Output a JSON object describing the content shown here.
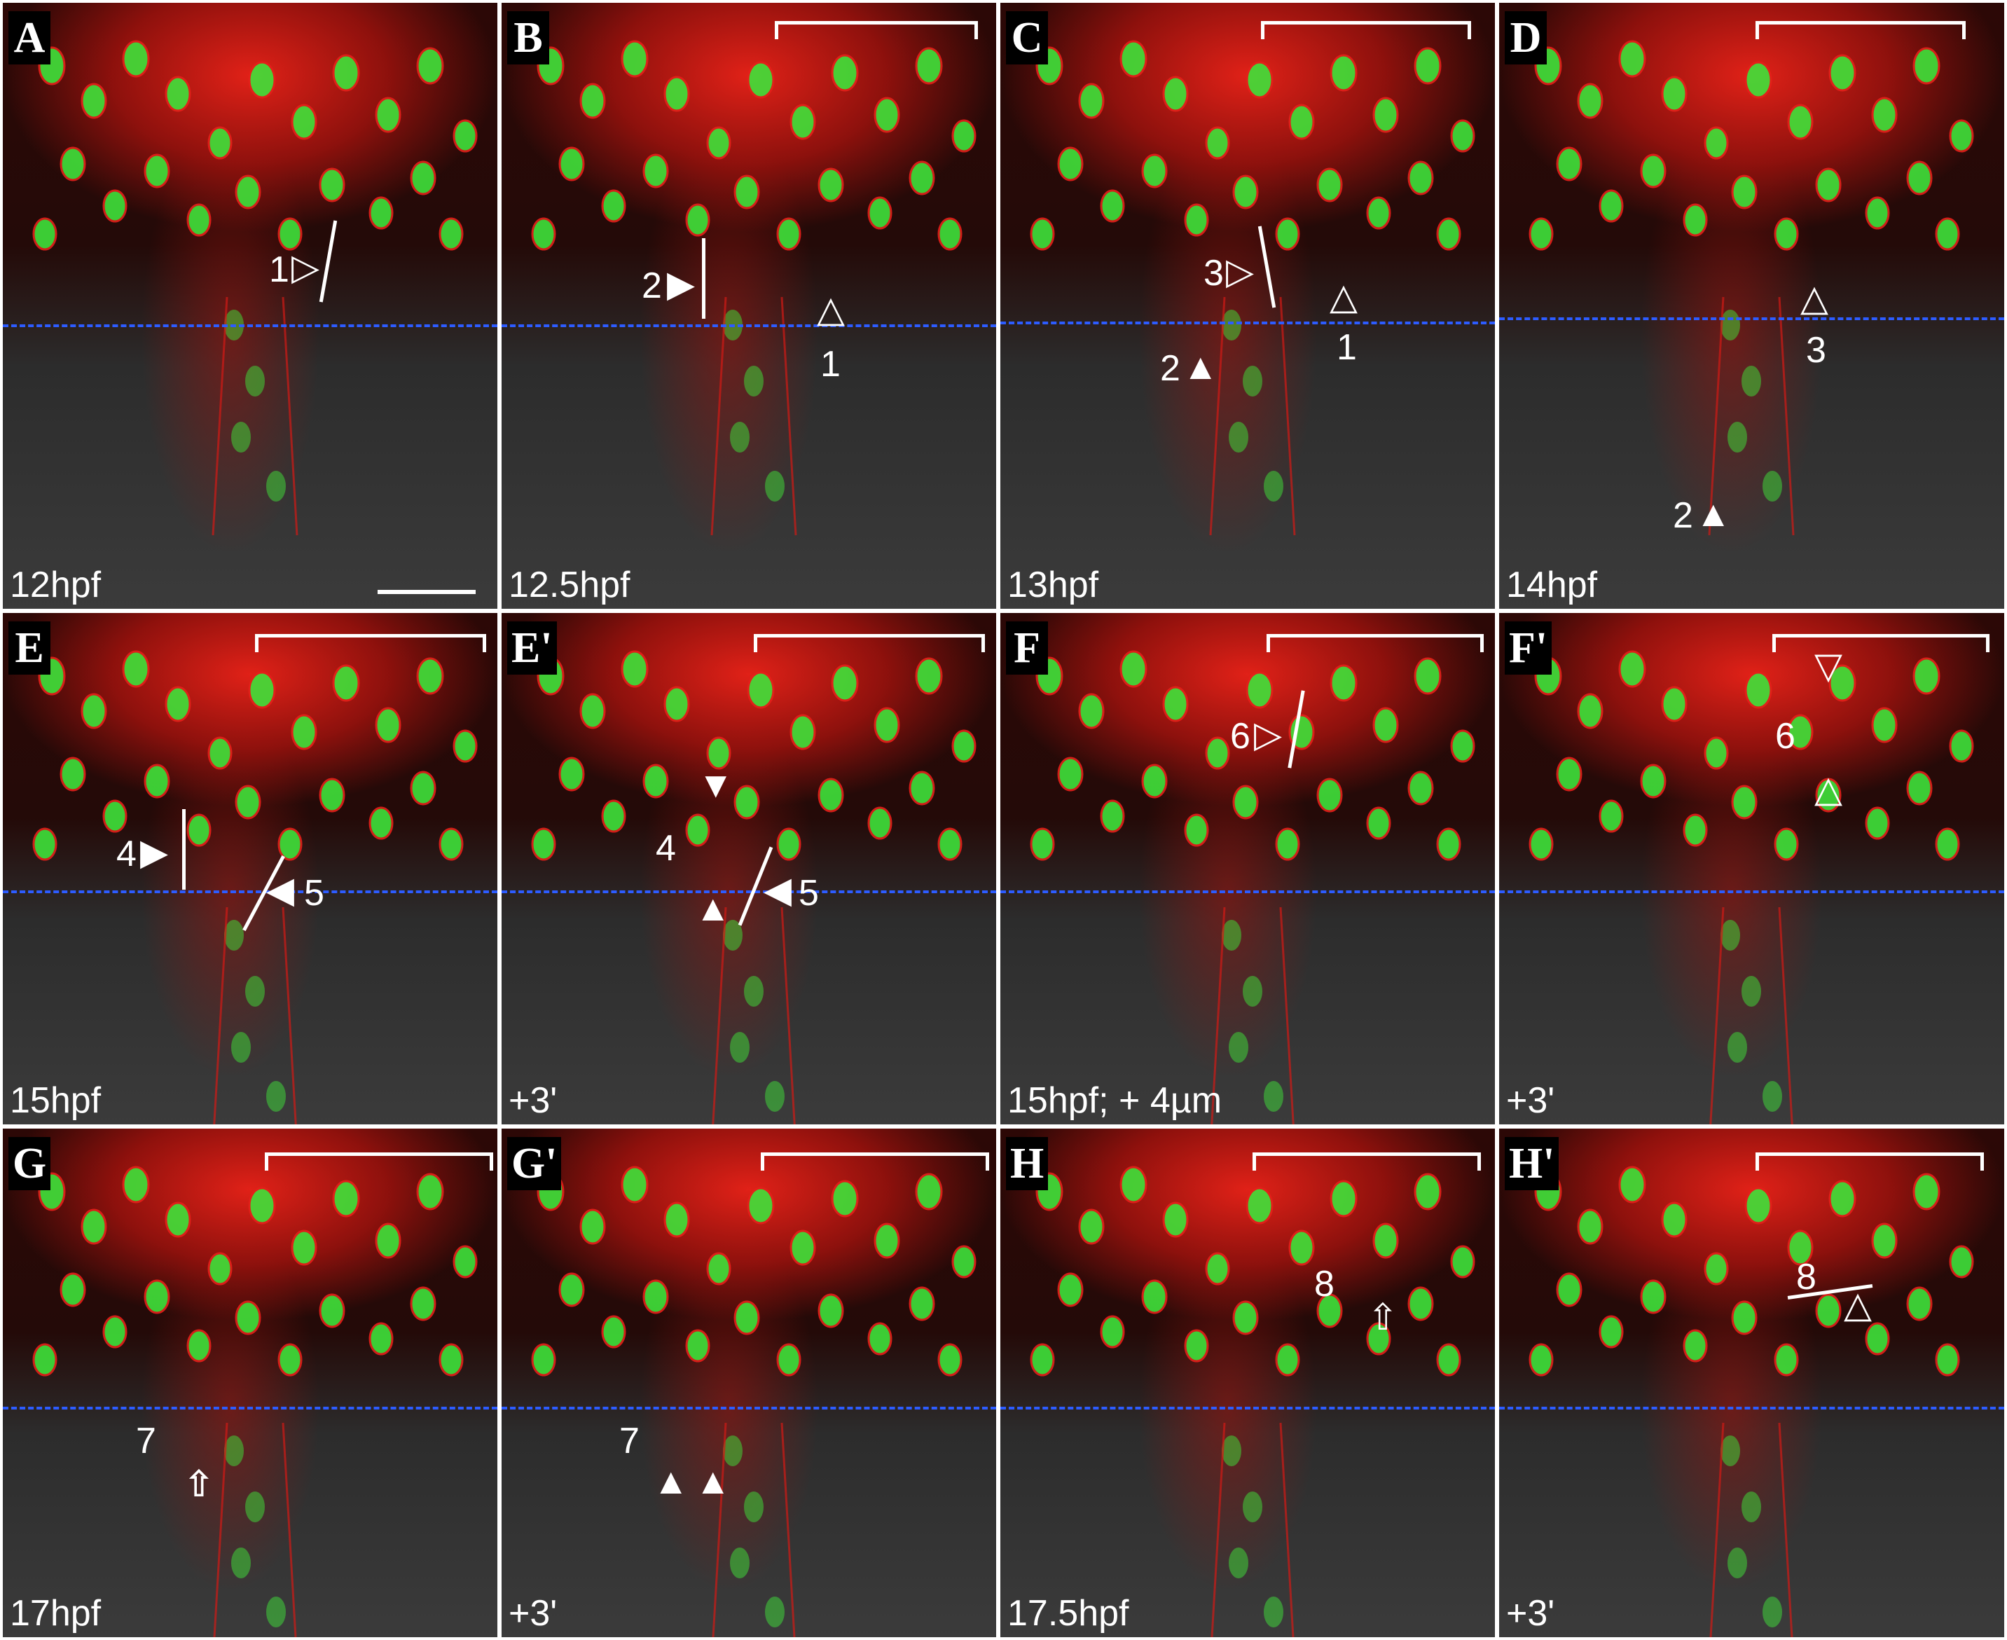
{
  "figure": {
    "panels": [
      {
        "letter": "A",
        "time": "12hpf",
        "annotations": [
          "1"
        ]
      },
      {
        "letter": "B",
        "time": "12.5hpf",
        "annotations": [
          "2",
          "1"
        ]
      },
      {
        "letter": "C",
        "time": "13hpf",
        "annotations": [
          "3",
          "1",
          "2"
        ]
      },
      {
        "letter": "D",
        "time": "14hpf",
        "annotations": [
          "3",
          "2"
        ]
      },
      {
        "letter": "E",
        "time": "15hpf",
        "annotations": [
          "4",
          "5"
        ]
      },
      {
        "letter": "E'",
        "time": "+3'",
        "annotations": [
          "4",
          "5"
        ]
      },
      {
        "letter": "F",
        "time": "15hpf; + 4µm",
        "annotations": [
          "6"
        ]
      },
      {
        "letter": "F'",
        "time": "+3'",
        "annotations": [
          "6"
        ]
      },
      {
        "letter": "G",
        "time": "17hpf",
        "annotations": [
          "7"
        ]
      },
      {
        "letter": "G'",
        "time": "+3'",
        "annotations": [
          "7"
        ]
      },
      {
        "letter": "H",
        "time": "17.5hpf",
        "annotations": [
          "8"
        ]
      },
      {
        "letter": "H'",
        "time": "+3'",
        "annotations": [
          "8"
        ]
      }
    ],
    "colors": {
      "membrane": "#e5201a",
      "nucleus": "#3fe23a",
      "guide_line": "#2d5cff",
      "annotation": "#ffffff",
      "background": "#2e2e2e"
    }
  }
}
